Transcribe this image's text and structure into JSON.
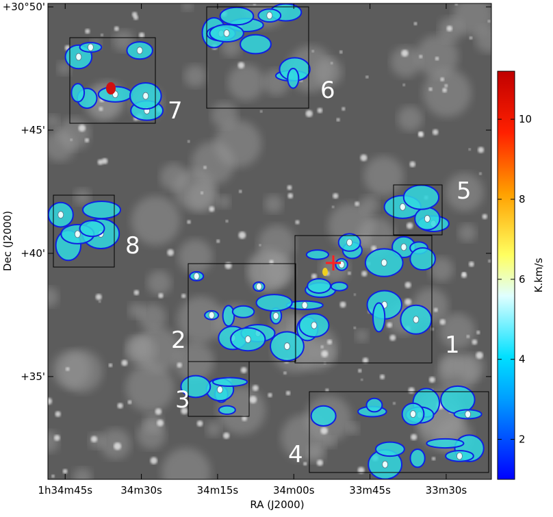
{
  "chart_data": {
    "type": "image",
    "xlabel": "RA (J2000)",
    "ylabel": "Dec (J2000)",
    "xlim": [
      5688.4,
      5601.1
    ],
    "xticks": [
      {
        "value": 5685,
        "label": "1h34m45s"
      },
      {
        "value": 5670,
        "label": "34m30s"
      },
      {
        "value": 5655,
        "label": "34m15s"
      },
      {
        "value": 5640,
        "label": "34m00s"
      },
      {
        "value": 5625,
        "label": "33m45s"
      },
      {
        "value": 5610,
        "label": "33m30s"
      }
    ],
    "ylim": [
      30.83,
      50.14
    ],
    "yticks": [
      {
        "value": 35,
        "label": "+35'"
      },
      {
        "value": 40,
        "label": "+40'"
      },
      {
        "value": 45,
        "label": "+45'"
      },
      {
        "value": 50,
        "label": "+30°50'"
      }
    ],
    "colorbar": {
      "label": "K.km/s",
      "clim": [
        1.0,
        11.2
      ],
      "ticks": [
        2,
        4,
        6,
        8,
        10
      ],
      "colormap": "jet"
    },
    "regions": [
      "1",
      "2",
      "3",
      "4",
      "5",
      "6",
      "7",
      "8"
    ]
  }
}
